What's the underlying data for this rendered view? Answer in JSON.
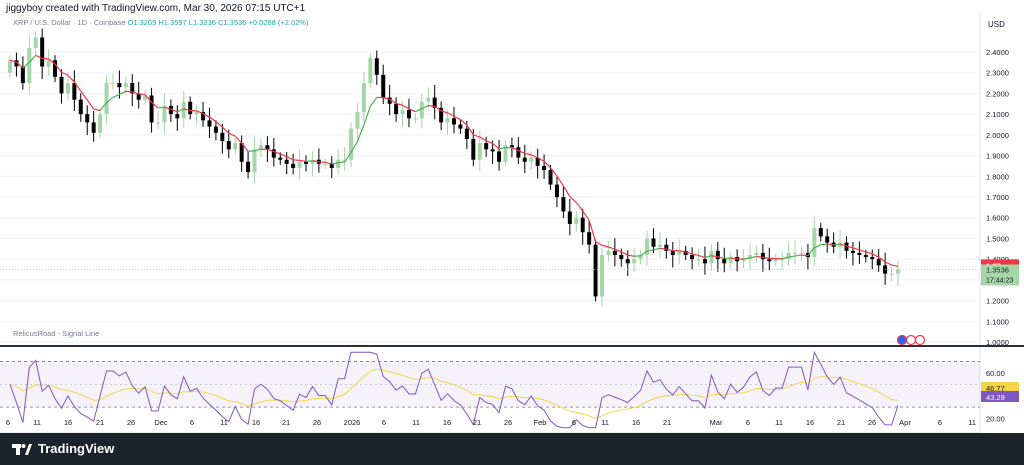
{
  "header": {
    "created_by": "jiggyboy created with TradingView.com, Mar 30, 2026 07:15 UTC+1",
    "legend_symbol": "XRP / U.S. Dollar · 1D · Coinbase",
    "legend_ohlc": "O1.3269 H1.3597 L1.3236 C1.3536 +0.0268 (+2.02%)",
    "currency": "USD"
  },
  "indicator": {
    "name": "RelicusRoad - Signal Line"
  },
  "branding": {
    "name": "TradingView"
  },
  "chart_data": [
    {
      "type": "candlestick",
      "title": "XRP / U.S. Dollar · 1D · Coinbase",
      "y_axis_labels": [
        "2.4000",
        "2.3000",
        "2.2000",
        "2.1000",
        "2.0000",
        "1.9000",
        "1.8000",
        "1.7000",
        "1.6000",
        "1.5000",
        "1.4000",
        "1.3000",
        "1.2000",
        "1.1000",
        "1.0000"
      ],
      "ylim": [
        1.0,
        2.5
      ],
      "x_axis_labels": [
        "6",
        "11",
        "16",
        "21",
        "26",
        "Dec",
        "6",
        "11",
        "16",
        "21",
        "26",
        "2026",
        "6",
        "11",
        "16",
        "21",
        "26",
        "Feb",
        "6",
        "11",
        "16",
        "21",
        "Mar",
        "6",
        "11",
        "16",
        "21",
        "26",
        "Apr",
        "6",
        "11"
      ],
      "price_labels": {
        "signal_line": {
          "value": "1.37",
          "color": "#f23645"
        },
        "last_price": {
          "value": "1.3536",
          "countdown": "17:44:23",
          "color": "#a5d6a7"
        }
      },
      "up_color": "#a5d6a7",
      "down_color": "#000000",
      "signal_line_colors": {
        "up": "#4caf50",
        "down": "#f23645"
      },
      "closes": [
        2.36,
        2.33,
        2.25,
        2.42,
        2.47,
        2.33,
        2.36,
        2.28,
        2.2,
        2.25,
        2.17,
        2.1,
        2.06,
        2.01,
        2.1,
        2.25,
        2.25,
        2.23,
        2.25,
        2.2,
        2.17,
        2.19,
        2.06,
        2.06,
        2.14,
        2.1,
        2.08,
        2.16,
        2.1,
        2.11,
        2.07,
        2.04,
        2.01,
        1.97,
        1.93,
        1.96,
        1.87,
        1.82,
        1.93,
        1.95,
        1.93,
        1.89,
        1.88,
        1.86,
        1.84,
        1.87,
        1.86,
        1.88,
        1.86,
        1.86,
        1.84,
        1.88,
        1.88,
        2.03,
        2.11,
        2.25,
        2.37,
        2.29,
        2.18,
        2.15,
        2.1,
        2.12,
        2.08,
        2.08,
        2.16,
        2.18,
        2.13,
        2.06,
        2.08,
        2.05,
        2.03,
        1.98,
        1.88,
        1.96,
        1.93,
        1.92,
        1.87,
        1.95,
        1.94,
        1.89,
        1.87,
        1.89,
        1.85,
        1.83,
        1.76,
        1.7,
        1.63,
        1.57,
        1.6,
        1.53,
        1.47,
        1.22,
        1.42,
        1.44,
        1.42,
        1.4,
        1.38,
        1.4,
        1.42,
        1.5,
        1.46,
        1.47,
        1.44,
        1.42,
        1.44,
        1.42,
        1.4,
        1.4,
        1.38,
        1.44,
        1.4,
        1.38,
        1.41,
        1.39,
        1.4,
        1.42,
        1.43,
        1.4,
        1.39,
        1.4,
        1.4,
        1.43,
        1.43,
        1.43,
        1.41,
        1.55,
        1.51,
        1.48,
        1.46,
        1.48,
        1.44,
        1.43,
        1.42,
        1.41,
        1.4,
        1.37,
        1.33,
        1.33,
        1.35
      ]
    },
    {
      "type": "line",
      "title": "RelicusRoad - Signal Line",
      "y_axis_labels": [
        "60.00",
        "20.00"
      ],
      "ylim": [
        10,
        80
      ],
      "price_labels": {
        "signal": {
          "value": "46.77",
          "color": "#f5d547"
        },
        "oscillator": {
          "value": "43.29",
          "color": "#7e57c2"
        }
      },
      "band": {
        "upper": 70,
        "lower": 30
      },
      "series_colors": {
        "oscillator": "#7e57c2",
        "signal": "#f5d547"
      }
    }
  ]
}
